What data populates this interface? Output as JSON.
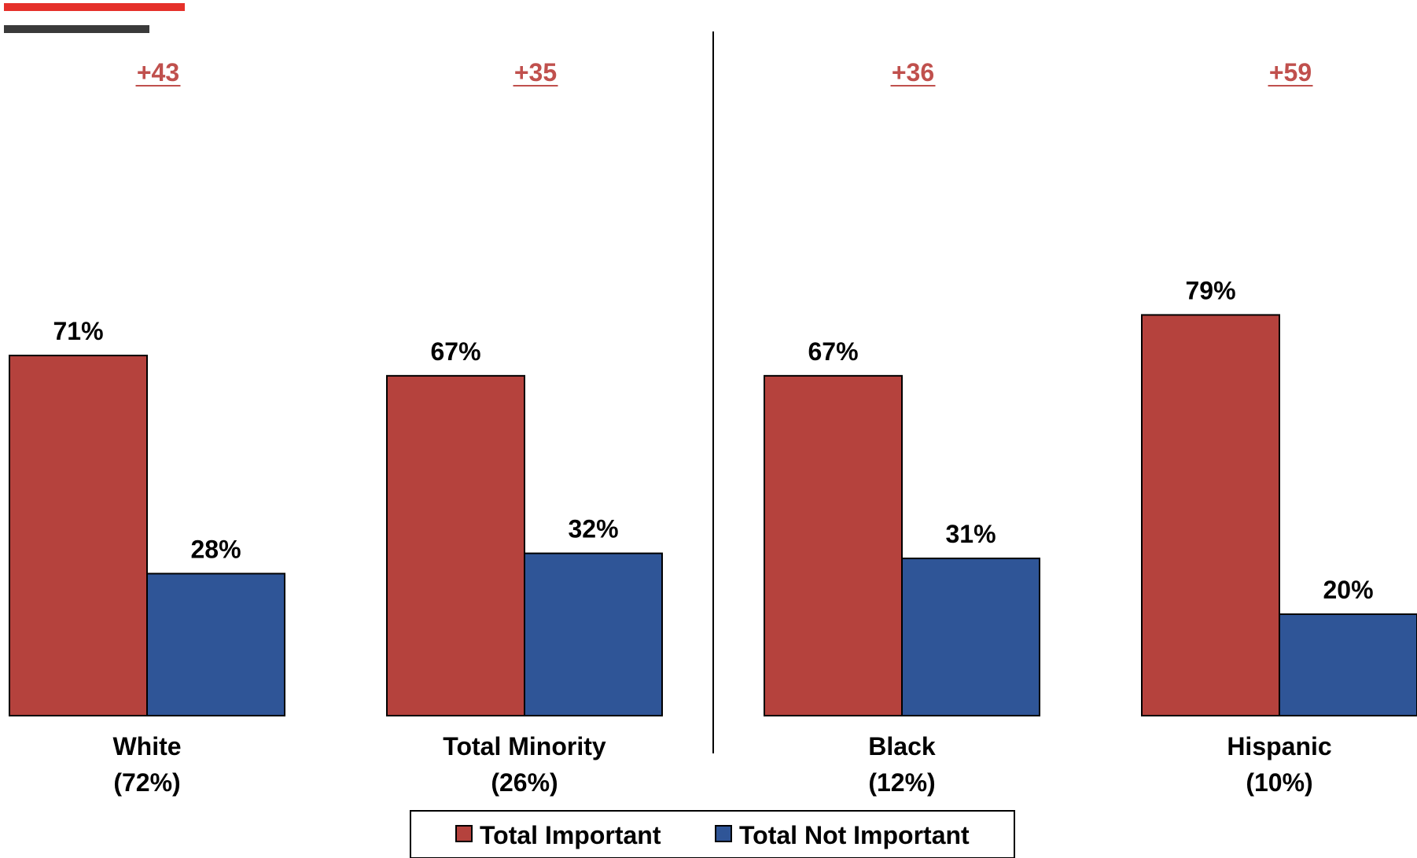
{
  "chart_data": {
    "type": "bar",
    "categories": [
      {
        "name": "White",
        "share": "(72%)",
        "gap": "+43"
      },
      {
        "name": "Total Minority",
        "share": "(26%)",
        "gap": "+35"
      },
      {
        "name": "Black",
        "share": "(12%)",
        "gap": "+36"
      },
      {
        "name": "Hispanic",
        "share": "(10%)",
        "gap": "+59"
      }
    ],
    "series": [
      {
        "name": "Total Important",
        "color": "#b5423d",
        "values": [
          71,
          67,
          67,
          79
        ]
      },
      {
        "name": "Total Not Important",
        "color": "#2f5597",
        "values": [
          28,
          32,
          31,
          20
        ]
      }
    ],
    "value_suffix": "%",
    "ylim": [
      0,
      100
    ],
    "gap_color": "#c0504d",
    "legend_position": "bottom-center",
    "divider_after_category": 1
  }
}
